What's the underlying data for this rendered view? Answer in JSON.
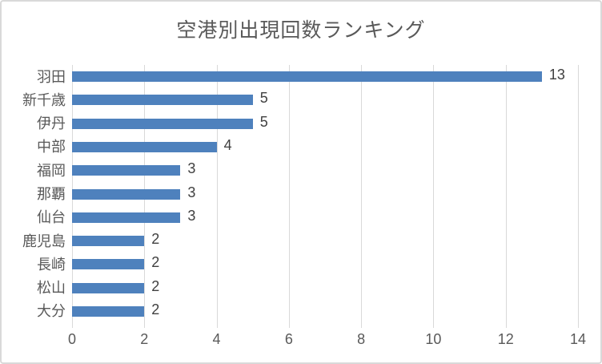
{
  "chart_data": {
    "type": "bar",
    "orientation": "horizontal",
    "title": "空港別出現回数ランキング",
    "categories": [
      "羽田",
      "新千歳",
      "伊丹",
      "中部",
      "福岡",
      "那覇",
      "仙台",
      "鹿児島",
      "長崎",
      "松山",
      "大分"
    ],
    "values": [
      13,
      5,
      5,
      4,
      3,
      3,
      3,
      2,
      2,
      2,
      2
    ],
    "data_labels": [
      13,
      5,
      5,
      4,
      3,
      3,
      3,
      2,
      2,
      2,
      2
    ],
    "xlabel": "",
    "ylabel": "",
    "xlim": [
      0,
      14
    ],
    "x_ticks": [
      0,
      2,
      4,
      6,
      8,
      10,
      12,
      14
    ],
    "grid": "vertical-gridlines-on",
    "legend": "none"
  },
  "colors": {
    "bar": "#4e81bd",
    "gridline": "#d9d9d9",
    "frame_border": "#d9d9d9",
    "title_text": "#595959",
    "axis_text": "#595959",
    "data_label_text": "#404040",
    "background": "#ffffff"
  }
}
